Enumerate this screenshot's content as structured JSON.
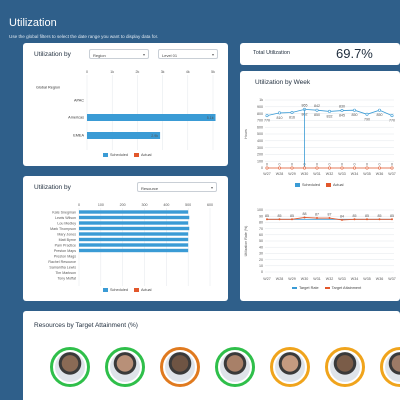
{
  "header": {
    "title": "Utilization",
    "subtitle": "Use the global filters to select the date range you want to display data for."
  },
  "region_card": {
    "title": "Utilization by",
    "select1": "Region",
    "select2": "Level 01",
    "x_ticks": [
      "0",
      "1k",
      "2k",
      "3k",
      "4k",
      "5k"
    ],
    "categories": [
      "Global Region",
      "APAC",
      "Americas",
      "EMEA"
    ],
    "scheduled": [
      0,
      0,
      5100,
      2900
    ],
    "scheduled_labels": [
      "",
      "",
      "5.1k",
      "2.9k"
    ],
    "legend": [
      "Scheduled",
      "Actual"
    ]
  },
  "resource_card": {
    "title": "Utilization by",
    "select": "Resource",
    "x_ticks": [
      "0",
      "100",
      "200",
      "300",
      "400",
      "500",
      "600"
    ],
    "resources": [
      "Kate Snegman",
      "Lewis Wilson",
      "Lou Medley",
      "Mark Thompson",
      "Mary Jones",
      "Matt Byrne",
      "Pam Practice",
      "Preston Maps",
      "Preston Mags",
      "Rachel Resource",
      "Samantha Lewis",
      "Tim Markson",
      "Tony Moffat"
    ],
    "scheduled": [
      500,
      505,
      500,
      505,
      500,
      500,
      500,
      500,
      0,
      0,
      0,
      0,
      0
    ],
    "legend": [
      "Scheduled",
      "Actual"
    ]
  },
  "total": {
    "label": "Total Utilization",
    "value": "69.7%"
  },
  "week_card": {
    "title": "Utilization by Week",
    "ylabel1": "Hours",
    "ylabel2": "Utilization Rate (%)",
    "weeks": [
      "W27",
      "W28",
      "W29",
      "W30",
      "W31",
      "W32",
      "W33",
      "W34",
      "W35",
      "W36",
      "W37"
    ],
    "scheduled": [
      770,
      810,
      816,
      862,
      850,
      832,
      845,
      850,
      790,
      850,
      770
    ],
    "scheduled_labels": [
      "770",
      "810",
      "816",
      "862",
      "850",
      "832",
      "845",
      "850",
      "790",
      "850",
      "770"
    ],
    "hours_top_labels": [
      "",
      "",
      "",
      "865",
      "842",
      "",
      "830",
      "",
      "",
      "",
      ""
    ],
    "actual": [
      0,
      0,
      0,
      0,
      0,
      0,
      0,
      0,
      0,
      0,
      0
    ],
    "hours_y_ticks": [
      "0",
      "100",
      "200",
      "300",
      "400",
      "500",
      "600",
      "700",
      "800",
      "900",
      "1k"
    ],
    "legend1": [
      "Scheduled",
      "Actual"
    ],
    "target_rate": [
      85,
      85,
      85,
      85,
      85,
      85,
      85,
      85,
      85,
      85,
      85
    ],
    "target_attainment": [
      85,
      85,
      85,
      88,
      87,
      87,
      84,
      85,
      85,
      85,
      85
    ],
    "rate_y_ticks": [
      "0",
      "10",
      "20",
      "30",
      "40",
      "50",
      "60",
      "70",
      "80",
      "90",
      "100"
    ],
    "legend2": [
      "Target Rate",
      "Target Attainment"
    ]
  },
  "attainment": {
    "title": "Resources by Target Attainment (%)",
    "avatars": [
      {
        "ring": "#2fbf4a"
      },
      {
        "ring": "#2fbf4a"
      },
      {
        "ring": "#e07a1f"
      },
      {
        "ring": "#2fbf4a"
      },
      {
        "ring": "#f0a41c"
      },
      {
        "ring": "#f0a41c"
      },
      {
        "ring": "#f0a41c"
      }
    ]
  },
  "colors": {
    "scheduled": "#3a9bd5",
    "actual": "#e2572b",
    "target_rate": "#3a9bd5",
    "target_attainment": "#e2572b"
  }
}
